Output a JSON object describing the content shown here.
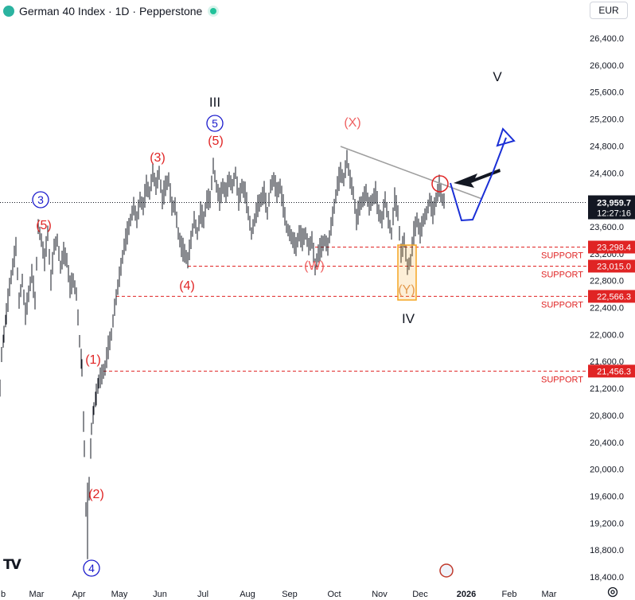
{
  "header": {
    "title": "German 40 Index · 1D · Pepperstone",
    "currency": "EUR"
  },
  "colors": {
    "bull": "#131722",
    "wave_red": "#e02424",
    "wave_blue": "#1a1acc",
    "support_line": "#e02424",
    "trendline": "#9e9e9e",
    "forecast": "#1a2fd6",
    "highlight_box": "#f5a623"
  },
  "chart_data": {
    "type": "line",
    "series": [
      {
        "values": [
          [
            0,
            21200
          ],
          [
            2,
            21700
          ],
          [
            5,
            22000
          ],
          [
            8,
            22300
          ],
          [
            12,
            22700
          ],
          [
            16,
            23000
          ],
          [
            20,
            23300
          ],
          [
            24,
            22500
          ],
          [
            28,
            22800
          ],
          [
            32,
            22300
          ],
          [
            36,
            22600
          ],
          [
            40,
            22900
          ],
          [
            44,
            22500
          ],
          [
            48,
            23600
          ],
          [
            52,
            23400
          ],
          [
            56,
            23100
          ],
          [
            60,
            23500
          ],
          [
            64,
            22800
          ],
          [
            68,
            23300
          ],
          [
            72,
            23400
          ],
          [
            76,
            23000
          ],
          [
            80,
            23200
          ],
          [
            84,
            23100
          ],
          [
            88,
            22700
          ],
          [
            92,
            22800
          ],
          [
            96,
            22600
          ],
          [
            100,
            21900
          ],
          [
            103,
            21500
          ],
          [
            106,
            20300
          ],
          [
            108,
            19400
          ],
          [
            110,
            18800
          ],
          [
            112,
            19700
          ],
          [
            115,
            20600
          ],
          [
            118,
            20900
          ],
          [
            121,
            21100
          ],
          [
            124,
            21300
          ],
          [
            128,
            21400
          ],
          [
            132,
            21500
          ],
          [
            136,
            21800
          ],
          [
            140,
            22000
          ],
          [
            144,
            22400
          ],
          [
            148,
            22700
          ],
          [
            152,
            23000
          ],
          [
            156,
            23300
          ],
          [
            160,
            23500
          ],
          [
            164,
            23700
          ],
          [
            168,
            23900
          ],
          [
            172,
            23700
          ],
          [
            176,
            24000
          ],
          [
            180,
            23900
          ],
          [
            184,
            24200
          ],
          [
            188,
            24100
          ],
          [
            192,
            24400
          ],
          [
            196,
            24200
          ],
          [
            200,
            24400
          ],
          [
            204,
            24000
          ],
          [
            208,
            24200
          ],
          [
            212,
            24300
          ],
          [
            216,
            23900
          ],
          [
            220,
            23900
          ],
          [
            224,
            23500
          ],
          [
            228,
            23300
          ],
          [
            232,
            23200
          ],
          [
            236,
            23100
          ],
          [
            240,
            23400
          ],
          [
            244,
            23700
          ],
          [
            248,
            23500
          ],
          [
            252,
            23800
          ],
          [
            256,
            23700
          ],
          [
            260,
            24000
          ],
          [
            264,
            24000
          ],
          [
            268,
            24500
          ],
          [
            272,
            24200
          ],
          [
            276,
            24000
          ],
          [
            280,
            24200
          ],
          [
            284,
            24100
          ],
          [
            288,
            24300
          ],
          [
            292,
            24200
          ],
          [
            296,
            24400
          ],
          [
            300,
            24000
          ],
          [
            304,
            24200
          ],
          [
            308,
            24100
          ],
          [
            312,
            23800
          ],
          [
            316,
            23500
          ],
          [
            320,
            23700
          ],
          [
            324,
            23900
          ],
          [
            328,
            24000
          ],
          [
            332,
            24100
          ],
          [
            336,
            23800
          ],
          [
            340,
            24200
          ],
          [
            344,
            24300
          ],
          [
            348,
            24100
          ],
          [
            352,
            24200
          ],
          [
            356,
            23900
          ],
          [
            360,
            23600
          ],
          [
            364,
            23500
          ],
          [
            368,
            23400
          ],
          [
            372,
            23300
          ],
          [
            376,
            23500
          ],
          [
            380,
            23400
          ],
          [
            384,
            23500
          ],
          [
            388,
            23300
          ],
          [
            392,
            23400
          ],
          [
            396,
            23000
          ],
          [
            400,
            23200
          ],
          [
            404,
            23300
          ],
          [
            408,
            23400
          ],
          [
            412,
            23300
          ],
          [
            416,
            23600
          ],
          [
            420,
            23900
          ],
          [
            424,
            24200
          ],
          [
            428,
            24400
          ],
          [
            432,
            24300
          ],
          [
            436,
            24600
          ],
          [
            440,
            24300
          ],
          [
            444,
            24100
          ],
          [
            448,
            23700
          ],
          [
            452,
            23900
          ],
          [
            456,
            24000
          ],
          [
            460,
            24100
          ],
          [
            464,
            23900
          ],
          [
            468,
            24000
          ],
          [
            472,
            24100
          ],
          [
            476,
            23800
          ],
          [
            480,
            23700
          ],
          [
            484,
            24000
          ],
          [
            488,
            23700
          ],
          [
            492,
            23500
          ],
          [
            496,
            24000
          ],
          [
            500,
            23800
          ],
          [
            504,
            23200
          ],
          [
            508,
            23400
          ],
          [
            512,
            23000
          ],
          [
            516,
            23100
          ],
          [
            520,
            23500
          ],
          [
            524,
            23700
          ],
          [
            528,
            23500
          ],
          [
            532,
            23700
          ],
          [
            536,
            23800
          ],
          [
            540,
            24000
          ],
          [
            544,
            23800
          ],
          [
            548,
            24000
          ],
          [
            552,
            24200
          ],
          [
            556,
            24000
          ],
          [
            560,
            23959.7
          ]
        ]
      }
    ],
    "price_axis": {
      "ticks": [
        "26,400.0",
        "26,000.0",
        "25,600.0",
        "25,200.0",
        "24,800.0",
        "24,400.0",
        "24,000.0",
        "23,600.0",
        "23,200.0",
        "22,800.0",
        "22,400.0",
        "22,000.0",
        "21,600.0",
        "21,200.0",
        "20,800.0",
        "20,400.0",
        "20,000.0",
        "19,600.0",
        "19,200.0",
        "18,800.0",
        "18,400.0"
      ],
      "ylim": [
        18300,
        26700
      ],
      "current_price": "23,959.7",
      "countdown": "12:27:16"
    },
    "time_axis": [
      "b",
      "Mar",
      "Apr",
      "May",
      "Jun",
      "Jul",
      "Aug",
      "Sep",
      "Oct",
      "Nov",
      "Dec",
      "2026",
      "Feb",
      "Mar"
    ],
    "support_levels": [
      {
        "price": 23298.4,
        "label": "23,298.4",
        "text": "SUPPORT"
      },
      {
        "price": 23015.0,
        "label": "23,015.0",
        "text": "SUPPORT"
      },
      {
        "price": 22566.3,
        "label": "22,566.3",
        "text": "SUPPORT"
      },
      {
        "price": 21456.3,
        "label": "21,456.3",
        "text": "SUPPORT"
      }
    ],
    "wave_labels": [
      {
        "text": "3",
        "style": "blue-circle"
      },
      {
        "text": "(5)",
        "style": "red"
      },
      {
        "text": "(1)",
        "style": "red"
      },
      {
        "text": "(2)",
        "style": "red"
      },
      {
        "text": "4",
        "style": "blue-circle"
      },
      {
        "text": "(3)",
        "style": "red"
      },
      {
        "text": "(4)",
        "style": "red"
      },
      {
        "text": "III",
        "style": "black"
      },
      {
        "text": "5",
        "style": "blue-circle"
      },
      {
        "text": "(5)",
        "style": "red"
      },
      {
        "text": "(X)",
        "style": "red-light"
      },
      {
        "text": "(W)",
        "style": "red-light"
      },
      {
        "text": "(Y)",
        "style": "orange"
      },
      {
        "text": "IV",
        "style": "black"
      },
      {
        "text": "V",
        "style": "black"
      }
    ]
  }
}
